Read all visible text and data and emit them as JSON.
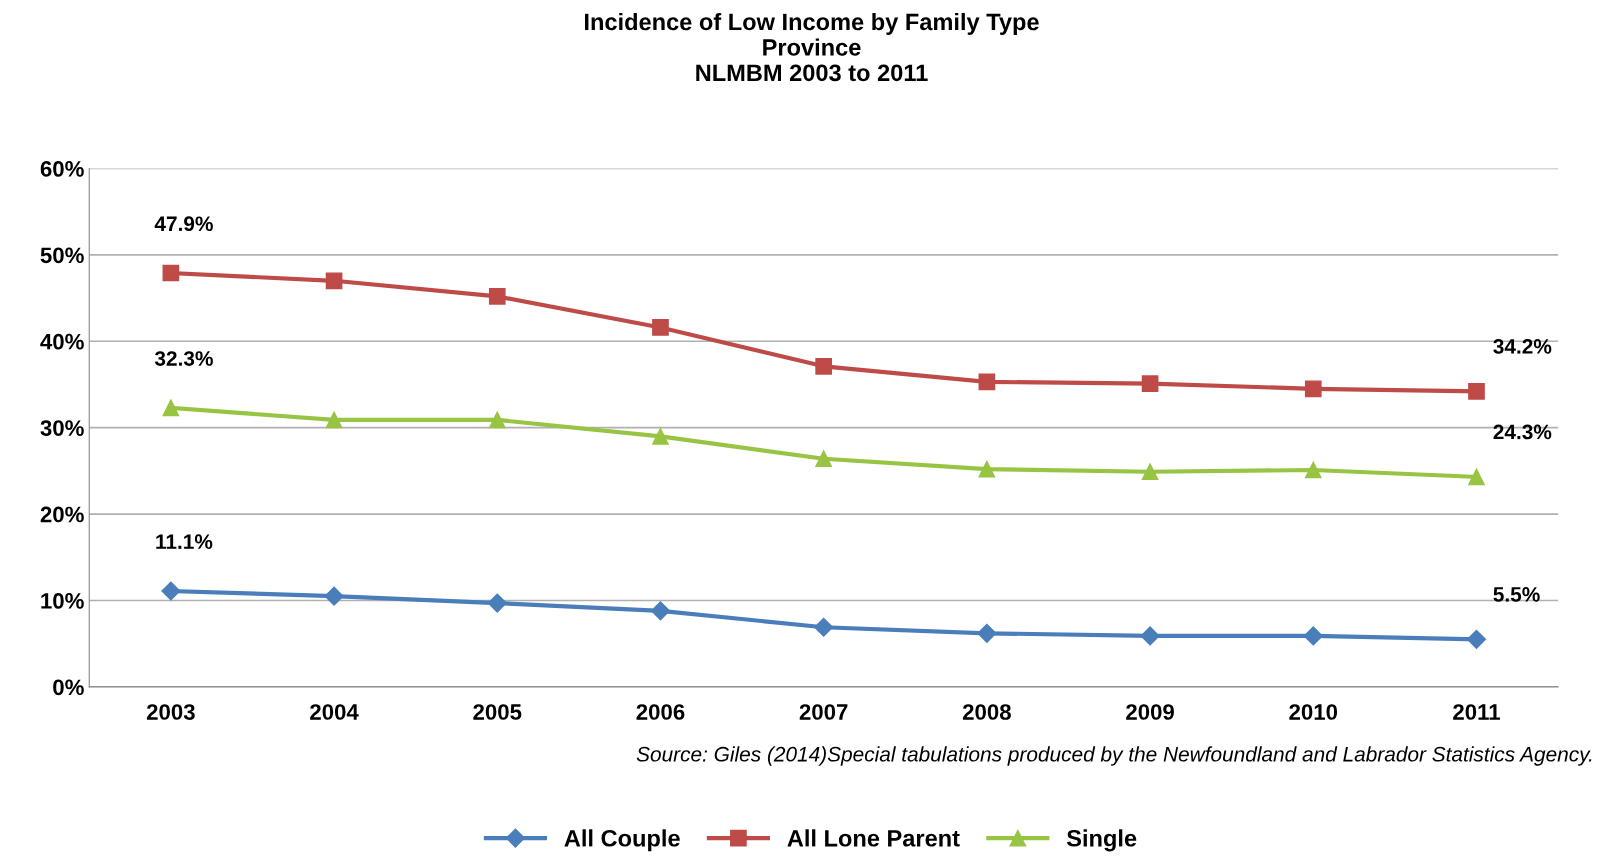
{
  "chart_data": {
    "type": "line",
    "title": "Incidence of Low Income by Family Type\nProvince\nNLMBM 2003 to 2011",
    "categories": [
      "2003",
      "2004",
      "2005",
      "2006",
      "2007",
      "2008",
      "2009",
      "2010",
      "2011"
    ],
    "series": [
      {
        "name": "All Couple",
        "color": "#4a7ebb",
        "marker": "diamond",
        "values": [
          11.1,
          10.5,
          9.7,
          8.8,
          6.9,
          6.2,
          5.9,
          5.9,
          5.5
        ],
        "value_labels": [
          "11.1%",
          null,
          null,
          null,
          null,
          null,
          null,
          null,
          "5.5%"
        ]
      },
      {
        "name": "All Lone Parent",
        "color": "#be4b48",
        "marker": "square",
        "values": [
          47.9,
          47.0,
          45.2,
          41.6,
          37.1,
          35.3,
          35.1,
          34.5,
          34.2
        ],
        "value_labels": [
          "47.9%",
          null,
          null,
          null,
          null,
          null,
          null,
          null,
          "34.2%"
        ]
      },
      {
        "name": "Single",
        "color": "#98c444",
        "marker": "triangle",
        "values": [
          32.3,
          30.9,
          30.9,
          29.0,
          26.4,
          25.2,
          24.9,
          25.1,
          24.3
        ],
        "value_labels": [
          "32.3%",
          null,
          null,
          null,
          null,
          null,
          null,
          null,
          "24.3%"
        ]
      }
    ],
    "ylim": [
      0,
      60
    ],
    "yticks": [
      {
        "value": 0,
        "label": "0%"
      },
      {
        "value": 10,
        "label": "10%"
      },
      {
        "value": 20,
        "label": "20%"
      },
      {
        "value": 30,
        "label": "30%"
      },
      {
        "value": 40,
        "label": "40%"
      },
      {
        "value": 50,
        "label": "50%"
      },
      {
        "value": 60,
        "label": "60%"
      }
    ],
    "grid": "y",
    "legend": "bottom",
    "line_style": "solid",
    "annotations": [
      "Source: Giles (2014)Special tabulations produced by the Newfoundland and Labrador Statistics Agency."
    ]
  }
}
